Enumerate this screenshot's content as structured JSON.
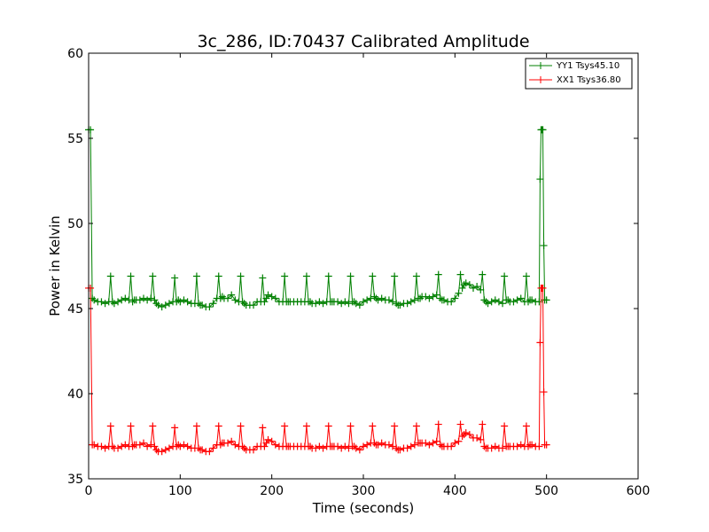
{
  "chart_data": {
    "type": "line",
    "title": "3c_286, ID:70437 Calibrated Amplitude",
    "xlabel": "Time (seconds)",
    "ylabel": "Power in Kelvin",
    "xlim": [
      0,
      600
    ],
    "ylim": [
      35,
      60
    ],
    "x_ticks": [
      0,
      100,
      200,
      300,
      400,
      500,
      600
    ],
    "y_ticks": [
      35,
      40,
      45,
      50,
      55,
      60
    ],
    "grid": false,
    "legend_position": "top-right",
    "marker": "plus",
    "series": [
      {
        "name": "YY1 Tsys45.10",
        "color": "#008000",
        "x": [
          0,
          2,
          4,
          6,
          10,
          14,
          18,
          22,
          24,
          26,
          28,
          32,
          36,
          40,
          44,
          46,
          48,
          50,
          52,
          56,
          60,
          64,
          68,
          70,
          72,
          74,
          76,
          80,
          84,
          88,
          92,
          94,
          96,
          98,
          100,
          104,
          108,
          112,
          116,
          118,
          120,
          122,
          124,
          128,
          132,
          136,
          140,
          142,
          144,
          146,
          148,
          152,
          156,
          160,
          164,
          166,
          168,
          170,
          172,
          176,
          180,
          184,
          188,
          190,
          192,
          194,
          196,
          200,
          204,
          208,
          212,
          214,
          216,
          218,
          220,
          224,
          228,
          232,
          236,
          238,
          240,
          242,
          244,
          248,
          252,
          256,
          260,
          262,
          264,
          266,
          268,
          272,
          276,
          280,
          284,
          286,
          288,
          290,
          292,
          296,
          300,
          304,
          308,
          310,
          312,
          314,
          316,
          320,
          324,
          328,
          332,
          334,
          336,
          338,
          340,
          344,
          348,
          352,
          356,
          358,
          360,
          362,
          364,
          368,
          372,
          376,
          380,
          382,
          384,
          386,
          388,
          392,
          396,
          400,
          404,
          406,
          408,
          410,
          412,
          416,
          420,
          424,
          428,
          430,
          432,
          434,
          436,
          440,
          444,
          448,
          452,
          454,
          456,
          458,
          460,
          464,
          468,
          472,
          476,
          478,
          480,
          482,
          484,
          488,
          492,
          493,
          494,
          495,
          496,
          497,
          498,
          500
        ],
        "y": [
          55.5,
          55.5,
          45.6,
          45.5,
          45.4,
          45.4,
          45.3,
          45.4,
          46.9,
          45.4,
          45.3,
          45.4,
          45.5,
          45.6,
          45.5,
          46.9,
          45.4,
          45.5,
          45.5,
          45.5,
          45.6,
          45.5,
          45.6,
          46.9,
          45.5,
          45.3,
          45.2,
          45.1,
          45.2,
          45.3,
          45.4,
          46.8,
          45.4,
          45.5,
          45.4,
          45.5,
          45.4,
          45.3,
          45.3,
          46.9,
          45.3,
          45.2,
          45.2,
          45.1,
          45.1,
          45.3,
          45.6,
          46.9,
          45.6,
          45.7,
          45.6,
          45.6,
          45.8,
          45.5,
          45.4,
          46.9,
          45.4,
          45.3,
          45.2,
          45.2,
          45.2,
          45.4,
          45.4,
          46.8,
          45.4,
          45.6,
          45.8,
          45.7,
          45.6,
          45.4,
          45.4,
          46.9,
          45.4,
          45.4,
          45.4,
          45.4,
          45.4,
          45.4,
          45.4,
          46.9,
          45.4,
          45.4,
          45.3,
          45.3,
          45.4,
          45.3,
          45.4,
          46.9,
          45.4,
          45.4,
          45.4,
          45.4,
          45.3,
          45.4,
          45.3,
          46.9,
          45.4,
          45.4,
          45.3,
          45.2,
          45.4,
          45.5,
          45.6,
          46.9,
          45.7,
          45.6,
          45.5,
          45.6,
          45.5,
          45.5,
          45.4,
          46.9,
          45.3,
          45.2,
          45.2,
          45.3,
          45.3,
          45.4,
          45.5,
          46.9,
          45.6,
          45.6,
          45.7,
          45.7,
          45.6,
          45.7,
          45.8,
          47.0,
          45.6,
          45.5,
          45.5,
          45.4,
          45.4,
          45.6,
          45.9,
          47.0,
          46.2,
          46.4,
          46.5,
          46.4,
          46.2,
          46.3,
          46.1,
          47.0,
          45.5,
          45.4,
          45.3,
          45.4,
          45.5,
          45.4,
          45.3,
          46.9,
          45.5,
          45.5,
          45.4,
          45.4,
          45.5,
          45.6,
          45.4,
          46.9,
          45.4,
          45.5,
          45.5,
          45.4,
          45.4,
          52.6,
          55.5,
          55.5,
          55.5,
          48.7,
          45.5,
          45.5
        ]
      },
      {
        "name": "XX1 Tsys36.80",
        "color": "#ff0000",
        "x": [
          0,
          2,
          4,
          6,
          10,
          14,
          18,
          22,
          24,
          26,
          28,
          32,
          36,
          40,
          44,
          46,
          48,
          50,
          52,
          56,
          60,
          64,
          68,
          70,
          72,
          74,
          76,
          80,
          84,
          88,
          92,
          94,
          96,
          98,
          100,
          104,
          108,
          112,
          116,
          118,
          120,
          122,
          124,
          128,
          132,
          136,
          140,
          142,
          144,
          146,
          148,
          152,
          156,
          160,
          164,
          166,
          168,
          170,
          172,
          176,
          180,
          184,
          188,
          190,
          192,
          194,
          196,
          200,
          204,
          208,
          212,
          214,
          216,
          218,
          220,
          224,
          228,
          232,
          236,
          238,
          240,
          242,
          244,
          248,
          252,
          256,
          260,
          262,
          264,
          266,
          268,
          272,
          276,
          280,
          284,
          286,
          288,
          290,
          292,
          296,
          300,
          304,
          308,
          310,
          312,
          314,
          316,
          320,
          324,
          328,
          332,
          334,
          336,
          338,
          340,
          344,
          348,
          352,
          356,
          358,
          360,
          362,
          364,
          368,
          372,
          376,
          380,
          382,
          384,
          386,
          388,
          392,
          396,
          400,
          404,
          406,
          408,
          410,
          412,
          416,
          420,
          424,
          428,
          430,
          432,
          434,
          436,
          440,
          444,
          448,
          452,
          454,
          456,
          458,
          460,
          464,
          468,
          472,
          476,
          478,
          480,
          482,
          484,
          488,
          492,
          493,
          494,
          495,
          496,
          497,
          498,
          500
        ],
        "y": [
          46.2,
          46.2,
          37.0,
          37.0,
          36.9,
          36.9,
          36.8,
          36.9,
          38.1,
          36.9,
          36.8,
          36.8,
          36.9,
          37.0,
          36.9,
          38.1,
          36.9,
          37.0,
          37.0,
          37.0,
          37.1,
          36.9,
          37.0,
          38.1,
          36.9,
          36.7,
          36.6,
          36.6,
          36.7,
          36.8,
          36.9,
          38.0,
          36.9,
          37.0,
          36.9,
          37.0,
          36.9,
          36.8,
          36.8,
          38.1,
          36.8,
          36.7,
          36.7,
          36.6,
          36.6,
          36.8,
          37.0,
          38.1,
          37.0,
          37.1,
          37.1,
          37.1,
          37.2,
          37.0,
          36.9,
          38.1,
          36.9,
          36.8,
          36.7,
          36.7,
          36.7,
          36.9,
          36.9,
          38.0,
          36.9,
          37.1,
          37.3,
          37.2,
          37.0,
          36.9,
          36.9,
          38.1,
          36.9,
          36.9,
          36.9,
          36.9,
          36.9,
          36.9,
          36.9,
          38.1,
          36.9,
          36.9,
          36.8,
          36.8,
          36.9,
          36.8,
          36.9,
          38.1,
          36.9,
          36.9,
          36.9,
          36.9,
          36.8,
          36.9,
          36.8,
          38.1,
          36.9,
          36.9,
          36.8,
          36.7,
          36.9,
          37.0,
          37.1,
          38.1,
          37.1,
          37.0,
          37.0,
          37.1,
          37.0,
          37.0,
          36.9,
          38.1,
          36.8,
          36.7,
          36.7,
          36.8,
          36.8,
          36.9,
          37.0,
          38.1,
          37.1,
          37.1,
          37.1,
          37.1,
          37.0,
          37.1,
          37.2,
          38.2,
          37.0,
          36.9,
          36.9,
          36.9,
          36.9,
          37.1,
          37.2,
          38.2,
          37.5,
          37.6,
          37.7,
          37.6,
          37.4,
          37.4,
          37.3,
          38.2,
          36.9,
          36.8,
          36.8,
          36.8,
          36.9,
          36.8,
          36.8,
          38.1,
          36.9,
          36.9,
          36.9,
          36.9,
          36.9,
          37.0,
          36.9,
          38.1,
          36.9,
          37.0,
          37.0,
          36.9,
          36.9,
          43.0,
          46.2,
          46.2,
          46.2,
          40.1,
          37.0,
          37.0
        ]
      }
    ]
  }
}
